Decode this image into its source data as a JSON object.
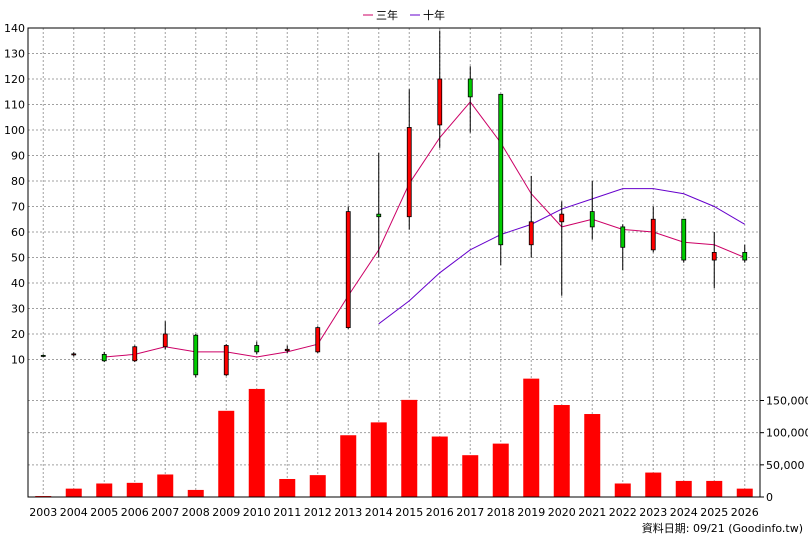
{
  "legend": [
    {
      "label": "三年",
      "color": "#cc0066"
    },
    {
      "label": "十年",
      "color": "#6600cc"
    }
  ],
  "footer_text": "資料日期: 09/21  (Goodinfo.tw)",
  "chart_data": {
    "type": "candlestick",
    "categories": [
      "2003",
      "2004",
      "2005",
      "2006",
      "2007",
      "2008",
      "2009",
      "2010",
      "2011",
      "2012",
      "2013",
      "2014",
      "2015",
      "2016",
      "2017",
      "2018",
      "2019",
      "2020",
      "2021",
      "2022",
      "2023",
      "2024",
      "2025",
      "2026"
    ],
    "price_ylim": [
      0,
      140
    ],
    "price_ticks": [
      10,
      20,
      30,
      40,
      50,
      60,
      70,
      80,
      90,
      100,
      110,
      120,
      130,
      140
    ],
    "ohlc": [
      {
        "open": 11.6,
        "high": 12.0,
        "low": 11.0,
        "close": 11.4
      },
      {
        "open": 12.0,
        "high": 12.8,
        "low": 11.2,
        "close": 12.2
      },
      {
        "open": 12.0,
        "high": 13.0,
        "low": 9.0,
        "close": 9.5
      },
      {
        "open": 9.5,
        "high": 15.5,
        "low": 9.0,
        "close": 15.0
      },
      {
        "open": 15.0,
        "high": 25.0,
        "low": 14.0,
        "close": 20.0
      },
      {
        "open": 19.5,
        "high": 20.0,
        "low": 3.0,
        "close": 4.0
      },
      {
        "open": 4.0,
        "high": 16.0,
        "low": 3.5,
        "close": 15.5
      },
      {
        "open": 15.5,
        "high": 17.0,
        "low": 12.0,
        "close": 13.0
      },
      {
        "open": 13.5,
        "high": 15.5,
        "low": 12.5,
        "close": 14.0
      },
      {
        "open": 13.0,
        "high": 23.0,
        "low": 12.5,
        "close": 22.5
      },
      {
        "open": 22.5,
        "high": 70.0,
        "low": 22.0,
        "close": 68.0
      },
      {
        "open": 67.0,
        "high": 91.0,
        "low": 50.0,
        "close": 66.0
      },
      {
        "open": 66.0,
        "high": 116.0,
        "low": 61.0,
        "close": 101.0
      },
      {
        "open": 102.0,
        "high": 139.0,
        "low": 93.0,
        "close": 120.0
      },
      {
        "open": 120.0,
        "high": 125.0,
        "low": 99.0,
        "close": 113.0
      },
      {
        "open": 114.0,
        "high": 114.0,
        "low": 47.0,
        "close": 55.0
      },
      {
        "open": 55.0,
        "high": 82.0,
        "low": 50.0,
        "close": 64.0
      },
      {
        "open": 64.0,
        "high": 72.0,
        "low": 35.0,
        "close": 67.0
      },
      {
        "open": 68.0,
        "high": 80.0,
        "low": 57.0,
        "close": 62.0
      },
      {
        "open": 62.0,
        "high": 63.0,
        "low": 45.0,
        "close": 54.0
      },
      {
        "open": 53.0,
        "high": 70.0,
        "low": 52.0,
        "close": 65.0
      },
      {
        "open": 65.0,
        "high": 65.0,
        "low": 48.0,
        "close": 49.0
      },
      {
        "open": 49.0,
        "high": 60.0,
        "low": 38.0,
        "close": 52.0
      },
      {
        "open": 52.0,
        "high": 55.0,
        "low": 48.0,
        "close": 49.0
      }
    ],
    "series": [
      {
        "name": "三年",
        "color": "#cc0066",
        "values": [
          null,
          null,
          11,
          12,
          15,
          13,
          13,
          11,
          13,
          16,
          35,
          53,
          79,
          97,
          111,
          95,
          75,
          62,
          65,
          61,
          60,
          56,
          55,
          50
        ]
      },
      {
        "name": "十年",
        "color": "#6600cc",
        "values": [
          null,
          null,
          null,
          null,
          null,
          null,
          null,
          null,
          null,
          null,
          null,
          24,
          33,
          44,
          53,
          59,
          63,
          69,
          73,
          77,
          77,
          75,
          70,
          63
        ]
      }
    ],
    "volume": [
      1500,
      13000,
      21000,
      22000,
      35000,
      11000,
      134000,
      168000,
      28000,
      34000,
      96000,
      116000,
      151000,
      94000,
      65000,
      83000,
      184000,
      143000,
      129000,
      21000,
      38000,
      25000,
      25000,
      13000
    ],
    "volume_ylim": [
      0,
      185000
    ],
    "volume_ticks": [
      0,
      50000,
      100000,
      150000
    ],
    "volume_tick_labels": [
      "0",
      "50,000",
      "100,000",
      "150,000"
    ]
  }
}
